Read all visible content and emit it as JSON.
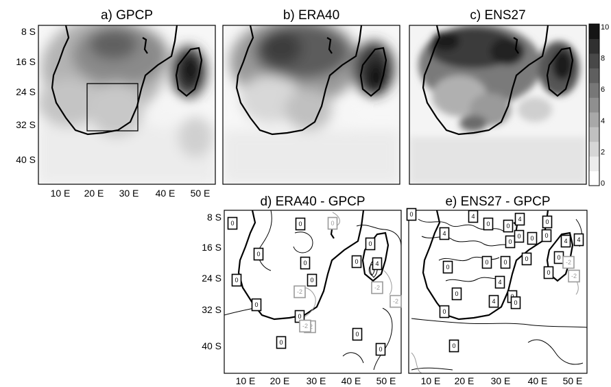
{
  "panels": [
    {
      "id": "a",
      "title": "a) GPCP",
      "type": "filled"
    },
    {
      "id": "b",
      "title": "b) ERA40",
      "type": "filled"
    },
    {
      "id": "c",
      "title": "c) ENS27",
      "type": "filled"
    },
    {
      "id": "d",
      "title": "d) ERA40 - GPCP",
      "type": "contour"
    },
    {
      "id": "e",
      "title": "e) ENS27 - GPCP",
      "type": "contour"
    }
  ],
  "lat_ticks": [
    "8 S",
    "16 S",
    "24 S",
    "32 S",
    "40 S"
  ],
  "lon_ticks": [
    "10 E",
    "20 E",
    "30 E",
    "40 E",
    "50 E"
  ],
  "colorbar": {
    "ticks": [
      "10",
      "8",
      "6",
      "4",
      "2",
      "0"
    ],
    "colors": [
      "#ffffff",
      "#ececec",
      "#d6d6d6",
      "#c0c0c0",
      "#a8a8a8",
      "#8f8f8f",
      "#777777",
      "#5f5f5f",
      "#484848",
      "#303030",
      "#151515"
    ]
  },
  "contour_labels": {
    "d": [
      {
        "t": "0",
        "g": false
      },
      {
        "t": "0",
        "g": false
      },
      {
        "t": "0",
        "g": true
      },
      {
        "t": "0",
        "g": false
      },
      {
        "t": "0",
        "g": false
      },
      {
        "t": "0",
        "g": false
      },
      {
        "t": "0",
        "g": false
      },
      {
        "t": "4",
        "g": false
      },
      {
        "t": "0",
        "g": false
      },
      {
        "t": "0",
        "g": false
      },
      {
        "t": "0",
        "g": false
      },
      {
        "t": "-2",
        "g": true
      },
      {
        "t": "-2",
        "g": true
      },
      {
        "t": "-2",
        "g": true
      },
      {
        "t": "-2",
        "g": true
      },
      {
        "t": "0",
        "g": false
      },
      {
        "t": "0",
        "g": false
      },
      {
        "t": "-2",
        "g": true
      },
      {
        "t": "0",
        "g": false
      },
      {
        "t": "0",
        "g": false
      }
    ],
    "e": [
      {
        "t": "0",
        "g": false
      },
      {
        "t": "4",
        "g": false
      },
      {
        "t": "0",
        "g": false
      },
      {
        "t": "0",
        "g": false
      },
      {
        "t": "4",
        "g": false
      },
      {
        "t": "0",
        "g": false
      },
      {
        "t": "4",
        "g": false
      },
      {
        "t": "0",
        "g": false
      },
      {
        "t": "0",
        "g": false
      },
      {
        "t": "0",
        "g": false
      },
      {
        "t": "0",
        "g": false
      },
      {
        "t": "4",
        "g": false
      },
      {
        "t": "4",
        "g": false
      },
      {
        "t": "0",
        "g": false
      },
      {
        "t": "0",
        "g": false
      },
      {
        "t": "0",
        "g": false
      },
      {
        "t": "0",
        "g": false
      },
      {
        "t": "0",
        "g": false
      },
      {
        "t": "4",
        "g": false
      },
      {
        "t": "0",
        "g": false
      },
      {
        "t": "0",
        "g": false
      },
      {
        "t": "4",
        "g": false
      },
      {
        "t": "0",
        "g": false
      },
      {
        "t": "-2",
        "g": true
      },
      {
        "t": "-2",
        "g": true
      },
      {
        "t": "0",
        "g": false
      },
      {
        "t": "0",
        "g": false
      },
      {
        "t": "0",
        "g": false
      }
    ]
  }
}
